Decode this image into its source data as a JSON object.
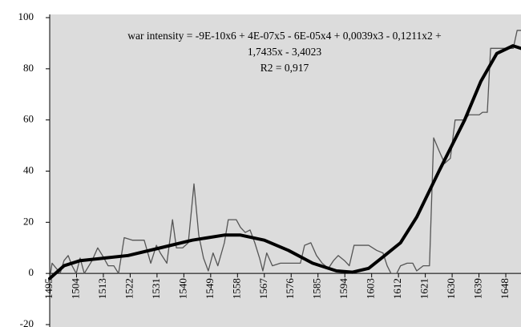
{
  "chart_data": {
    "type": "line",
    "annotation": [
      "war intensity = -9E-10x6 + 4E-07x5 - 6E-05x4 + 0,0039x3 - 0,1211x2 +",
      "1,7435x - 3,4023",
      "R2 = 0,917"
    ],
    "xlim": [
      1495,
      1653.1
    ],
    "ylim": [
      -20,
      100
    ],
    "xticks": [
      1495,
      1504,
      1513,
      1522,
      1531,
      1540,
      1549,
      1558,
      1567,
      1576,
      1585,
      1594,
      1603,
      1612,
      1621,
      1630,
      1639,
      1648
    ],
    "yticks": [
      -20,
      0,
      20,
      40,
      60,
      80,
      100
    ],
    "grid": false,
    "background": "#dcdcdc",
    "series": [
      {
        "color": "#555555",
        "width": 1.3,
        "x": [
          1495.0,
          1495.8,
          1497.2,
          1498.5,
          1499.8,
          1501.2,
          1502.5,
          1503.9,
          1505.2,
          1506.6,
          1509.2,
          1511.1,
          1512.7,
          1514.6,
          1516.5,
          1518.1,
          1520.0,
          1522.7,
          1526.7,
          1528.9,
          1530.8,
          1532.1,
          1534.3,
          1536.2,
          1537.5,
          1539.6,
          1541.5,
          1543.4,
          1545.0,
          1546.6,
          1548.2,
          1549.8,
          1551.4,
          1553.6,
          1554.9,
          1557.6,
          1559.0,
          1560.6,
          1562.2,
          1563.8,
          1565.4,
          1566.5,
          1567.8,
          1569.7,
          1572.4,
          1579.1,
          1580.5,
          1582.6,
          1584.5,
          1586.4,
          1588.5,
          1590.2,
          1591.8,
          1593.9,
          1595.5,
          1597.1,
          1602.0,
          1604.7,
          1606.8,
          1608.2,
          1609.5,
          1611.4,
          1612.7,
          1614.9,
          1616.8,
          1618.1,
          1620.3,
          1622.4,
          1623.8,
          1625.6,
          1627.5,
          1629.4,
          1631.0,
          1634.2,
          1635.6,
          1639.1,
          1640.2,
          1641.8,
          1642.9,
          1646.4,
          1650.5,
          1651.8,
          1653.1
        ],
        "values": [
          -2,
          4,
          2,
          0,
          5,
          7,
          3,
          0,
          6,
          0,
          5,
          10,
          7,
          3,
          3,
          0,
          14,
          13,
          13,
          4,
          11,
          8,
          4,
          21,
          10,
          10,
          12,
          35,
          15,
          6,
          1,
          8,
          3,
          12,
          21,
          21,
          18,
          16,
          17,
          12,
          6,
          1,
          8,
          3,
          4,
          4,
          11,
          12,
          7,
          4,
          2,
          5,
          7,
          5,
          3,
          11,
          11,
          9,
          8,
          3,
          0,
          0,
          3,
          4,
          4,
          1,
          3,
          3,
          53,
          48,
          43,
          45,
          60,
          60,
          62,
          62,
          63,
          63,
          88,
          88,
          88,
          95,
          95
        ]
      },
      {
        "color": "#000000",
        "width": 4,
        "x": [
          1495.0,
          1499.8,
          1505.2,
          1513.3,
          1521.3,
          1532.1,
          1542.8,
          1553.6,
          1559.0,
          1567.0,
          1575.1,
          1583.2,
          1591.2,
          1596.6,
          1602.0,
          1607.4,
          1612.7,
          1618.1,
          1625.6,
          1634.2,
          1639.6,
          1645.0,
          1650.4,
          1653.1
        ],
        "values": [
          -2,
          3,
          5,
          6,
          7,
          10,
          13,
          15,
          15,
          13,
          9,
          4,
          1,
          0.5,
          2,
          7,
          12,
          22,
          40,
          60,
          75,
          86,
          89,
          88
        ]
      }
    ]
  }
}
